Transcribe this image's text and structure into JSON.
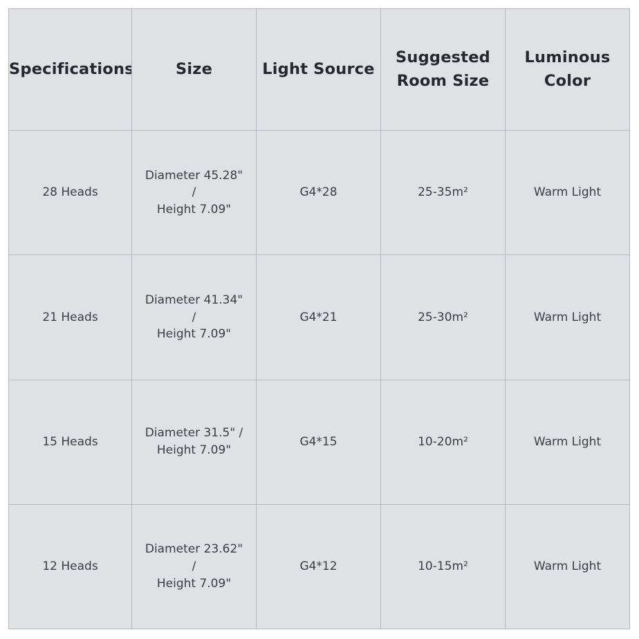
{
  "colors": {
    "page_bg": "#ffffff",
    "cell_bg": "#e0e1e5",
    "border": "#b6b8be",
    "header_text": "#26282d",
    "body_text": "#3b3d43"
  },
  "chart_data": {
    "type": "table",
    "title": "",
    "columns": [
      "Specifications",
      "Size",
      "Light Source",
      "Suggested Room Size",
      "Luminous Color"
    ],
    "rows": [
      [
        "28 Heads",
        "Diameter 45.28\" / Height 7.09\"",
        "G4*28",
        "25-35m²",
        "Warm Light"
      ],
      [
        "21 Heads",
        "Diameter 41.34\" / Height 7.09\"",
        "G4*21",
        "25-30m²",
        "Warm Light"
      ],
      [
        "15 Heads",
        "Diameter 31.5\" / Height 7.09\"",
        "G4*15",
        "10-20m²",
        "Warm Light"
      ],
      [
        "12 Heads",
        "Diameter 23.62\" / Height 7.09\"",
        "G4*12",
        "10-15m²",
        "Warm Light"
      ]
    ]
  },
  "table": {
    "headers": {
      "specifications": "Specifications",
      "size": "Size",
      "light_source": "Light Source",
      "room_size": "Suggested\nRoom Size",
      "luminous_color": "Luminous\nColor"
    },
    "rows": [
      {
        "specifications": "28 Heads",
        "size": "Diameter 45.28\" /\nHeight 7.09\"",
        "light_source": "G4*28",
        "room_size": "25-35m²",
        "luminous_color": "Warm Light"
      },
      {
        "specifications": "21 Heads",
        "size": "Diameter 41.34\" /\nHeight 7.09\"",
        "light_source": "G4*21",
        "room_size": "25-30m²",
        "luminous_color": "Warm Light"
      },
      {
        "specifications": "15 Heads",
        "size": "Diameter 31.5\" /\nHeight 7.09\"",
        "light_source": "G4*15",
        "room_size": "10-20m²",
        "luminous_color": "Warm Light"
      },
      {
        "specifications": "12 Heads",
        "size": "Diameter 23.62\" /\nHeight 7.09\"",
        "light_source": "G4*12",
        "room_size": "10-15m²",
        "luminous_color": "Warm Light"
      }
    ]
  }
}
